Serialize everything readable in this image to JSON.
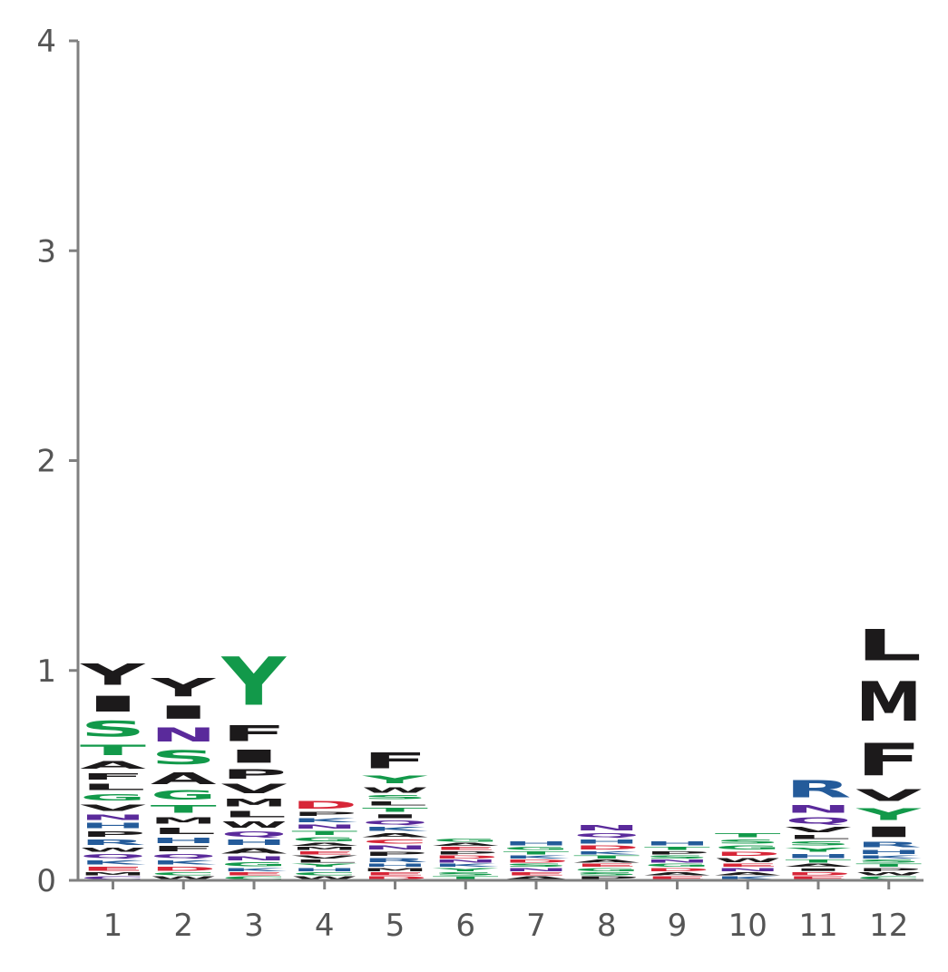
{
  "chart_data": {
    "type": "sequence-logo",
    "title": "",
    "xlabel": "",
    "ylabel": "",
    "ylim": [
      0,
      4
    ],
    "y_ticks": [
      0,
      1,
      2,
      3,
      4
    ],
    "x_ticks": [
      1,
      2,
      3,
      4,
      5,
      6,
      7,
      8,
      9,
      10,
      11,
      12
    ],
    "grid": false,
    "colors": {
      "black": "#1c1a1b",
      "green": "#12994a",
      "purple": "#5a2a9b",
      "blue": "#245b9a",
      "red": "#d72638",
      "axis": "#808080",
      "tick_text": "#555555"
    },
    "positions": [
      {
        "pos": 1,
        "letters": [
          {
            "l": "C",
            "h": 0.02,
            "c": "purple"
          },
          {
            "l": "M",
            "h": 0.02,
            "c": "black"
          },
          {
            "l": "E",
            "h": 0.03,
            "c": "red"
          },
          {
            "l": "K",
            "h": 0.03,
            "c": "blue"
          },
          {
            "l": "Q",
            "h": 0.03,
            "c": "purple"
          },
          {
            "l": "W",
            "h": 0.03,
            "c": "black"
          },
          {
            "l": "R",
            "h": 0.04,
            "c": "blue"
          },
          {
            "l": "P",
            "h": 0.04,
            "c": "black"
          },
          {
            "l": "H",
            "h": 0.04,
            "c": "blue"
          },
          {
            "l": "N",
            "h": 0.04,
            "c": "purple"
          },
          {
            "l": "V",
            "h": 0.05,
            "c": "black"
          },
          {
            "l": "G",
            "h": 0.05,
            "c": "green"
          },
          {
            "l": "L",
            "h": 0.05,
            "c": "black"
          },
          {
            "l": "F",
            "h": 0.05,
            "c": "black"
          },
          {
            "l": "A",
            "h": 0.06,
            "c": "black"
          },
          {
            "l": "T",
            "h": 0.08,
            "c": "green"
          },
          {
            "l": "S",
            "h": 0.12,
            "c": "green"
          },
          {
            "l": "I",
            "h": 0.12,
            "c": "black"
          },
          {
            "l": "Y",
            "h": 0.16,
            "c": "black"
          }
        ]
      },
      {
        "pos": 2,
        "letters": [
          {
            "l": "W",
            "h": 0.02,
            "c": "black"
          },
          {
            "l": "C",
            "h": 0.02,
            "c": "green"
          },
          {
            "l": "D",
            "h": 0.03,
            "c": "red"
          },
          {
            "l": "K",
            "h": 0.03,
            "c": "blue"
          },
          {
            "l": "Q",
            "h": 0.03,
            "c": "purple"
          },
          {
            "l": "F",
            "h": 0.04,
            "c": "black"
          },
          {
            "l": "H",
            "h": 0.04,
            "c": "blue"
          },
          {
            "l": "L",
            "h": 0.05,
            "c": "black"
          },
          {
            "l": "M",
            "h": 0.05,
            "c": "black"
          },
          {
            "l": "T",
            "h": 0.06,
            "c": "green"
          },
          {
            "l": "G",
            "h": 0.07,
            "c": "green"
          },
          {
            "l": "A",
            "h": 0.09,
            "c": "black"
          },
          {
            "l": "S",
            "h": 0.11,
            "c": "green"
          },
          {
            "l": "N",
            "h": 0.11,
            "c": "purple"
          },
          {
            "l": "I",
            "h": 0.1,
            "c": "black"
          },
          {
            "l": "Y",
            "h": 0.14,
            "c": "black"
          }
        ]
      },
      {
        "pos": 3,
        "letters": [
          {
            "l": "C",
            "h": 0.02,
            "c": "green"
          },
          {
            "l": "E",
            "h": 0.02,
            "c": "red"
          },
          {
            "l": "K",
            "h": 0.02,
            "c": "blue"
          },
          {
            "l": "G",
            "h": 0.03,
            "c": "green"
          },
          {
            "l": "N",
            "h": 0.03,
            "c": "purple"
          },
          {
            "l": "A",
            "h": 0.04,
            "c": "black"
          },
          {
            "l": "H",
            "h": 0.04,
            "c": "blue"
          },
          {
            "l": "Q",
            "h": 0.04,
            "c": "purple"
          },
          {
            "l": "W",
            "h": 0.05,
            "c": "black"
          },
          {
            "l": "L",
            "h": 0.05,
            "c": "black"
          },
          {
            "l": "M",
            "h": 0.06,
            "c": "black"
          },
          {
            "l": "V",
            "h": 0.07,
            "c": "black"
          },
          {
            "l": "P",
            "h": 0.07,
            "c": "black"
          },
          {
            "l": "I",
            "h": 0.1,
            "c": "black"
          },
          {
            "l": "F",
            "h": 0.12,
            "c": "black"
          },
          {
            "l": "Y",
            "h": 0.37,
            "c": "green"
          }
        ]
      },
      {
        "pos": 4,
        "letters": [
          {
            "l": "W",
            "h": 0.02,
            "c": "black"
          },
          {
            "l": "C",
            "h": 0.02,
            "c": "green"
          },
          {
            "l": "H",
            "h": 0.02,
            "c": "blue"
          },
          {
            "l": "Y",
            "h": 0.02,
            "c": "green"
          },
          {
            "l": "L",
            "h": 0.02,
            "c": "black"
          },
          {
            "l": "V",
            "h": 0.02,
            "c": "black"
          },
          {
            "l": "E",
            "h": 0.02,
            "c": "red"
          },
          {
            "l": "M",
            "h": 0.02,
            "c": "black"
          },
          {
            "l": "A",
            "h": 0.02,
            "c": "black"
          },
          {
            "l": "G",
            "h": 0.03,
            "c": "green"
          },
          {
            "l": "T",
            "h": 0.03,
            "c": "green"
          },
          {
            "l": "N",
            "h": 0.03,
            "c": "purple"
          },
          {
            "l": "K",
            "h": 0.03,
            "c": "blue"
          },
          {
            "l": "P",
            "h": 0.03,
            "c": "black"
          },
          {
            "l": "D",
            "h": 0.06,
            "c": "red"
          }
        ]
      },
      {
        "pos": 5,
        "letters": [
          {
            "l": "D",
            "h": 0.02,
            "c": "red"
          },
          {
            "l": "E",
            "h": 0.02,
            "c": "red"
          },
          {
            "l": "M",
            "h": 0.02,
            "c": "black"
          },
          {
            "l": "H",
            "h": 0.02,
            "c": "blue"
          },
          {
            "l": "R",
            "h": 0.03,
            "c": "blue"
          },
          {
            "l": "P",
            "h": 0.03,
            "c": "black"
          },
          {
            "l": "N",
            "h": 0.03,
            "c": "purple"
          },
          {
            "l": "C",
            "h": 0.03,
            "c": "red"
          },
          {
            "l": "A",
            "h": 0.03,
            "c": "black"
          },
          {
            "l": "K",
            "h": 0.03,
            "c": "blue"
          },
          {
            "l": "Q",
            "h": 0.03,
            "c": "purple"
          },
          {
            "l": "I",
            "h": 0.03,
            "c": "black"
          },
          {
            "l": "T",
            "h": 0.03,
            "c": "green"
          },
          {
            "l": "L",
            "h": 0.03,
            "c": "black"
          },
          {
            "l": "S",
            "h": 0.03,
            "c": "green"
          },
          {
            "l": "W",
            "h": 0.04,
            "c": "black"
          },
          {
            "l": "Y",
            "h": 0.06,
            "c": "green"
          },
          {
            "l": "F",
            "h": 0.12,
            "c": "black"
          }
        ]
      },
      {
        "pos": 6,
        "letters": [
          {
            "l": "T",
            "h": 0.02,
            "c": "green"
          },
          {
            "l": "S",
            "h": 0.02,
            "c": "green"
          },
          {
            "l": "Y",
            "h": 0.02,
            "c": "green"
          },
          {
            "l": "K",
            "h": 0.02,
            "c": "blue"
          },
          {
            "l": "N",
            "h": 0.02,
            "c": "purple"
          },
          {
            "l": "D",
            "h": 0.02,
            "c": "red"
          },
          {
            "l": "P",
            "h": 0.02,
            "c": "black"
          },
          {
            "l": "E",
            "h": 0.02,
            "c": "red"
          },
          {
            "l": "A",
            "h": 0.02,
            "c": "black"
          },
          {
            "l": "G",
            "h": 0.02,
            "c": "green"
          }
        ]
      },
      {
        "pos": 7,
        "letters": [
          {
            "l": "A",
            "h": 0.02,
            "c": "black"
          },
          {
            "l": "E",
            "h": 0.02,
            "c": "red"
          },
          {
            "l": "N",
            "h": 0.02,
            "c": "purple"
          },
          {
            "l": "S",
            "h": 0.02,
            "c": "green"
          },
          {
            "l": "D",
            "h": 0.02,
            "c": "red"
          },
          {
            "l": "K",
            "h": 0.02,
            "c": "blue"
          },
          {
            "l": "T",
            "h": 0.02,
            "c": "green"
          },
          {
            "l": "G",
            "h": 0.02,
            "c": "green"
          },
          {
            "l": "H",
            "h": 0.03,
            "c": "blue"
          }
        ]
      },
      {
        "pos": 8,
        "letters": [
          {
            "l": "P",
            "h": 0.02,
            "c": "black"
          },
          {
            "l": "S",
            "h": 0.02,
            "c": "green"
          },
          {
            "l": "G",
            "h": 0.02,
            "c": "green"
          },
          {
            "l": "E",
            "h": 0.02,
            "c": "red"
          },
          {
            "l": "A",
            "h": 0.02,
            "c": "black"
          },
          {
            "l": "T",
            "h": 0.02,
            "c": "green"
          },
          {
            "l": "K",
            "h": 0.02,
            "c": "blue"
          },
          {
            "l": "D",
            "h": 0.03,
            "c": "red"
          },
          {
            "l": "H",
            "h": 0.03,
            "c": "blue"
          },
          {
            "l": "Q",
            "h": 0.03,
            "c": "purple"
          },
          {
            "l": "N",
            "h": 0.04,
            "c": "purple"
          }
        ]
      },
      {
        "pos": 9,
        "letters": [
          {
            "l": "E",
            "h": 0.02,
            "c": "red"
          },
          {
            "l": "A",
            "h": 0.02,
            "c": "black"
          },
          {
            "l": "D",
            "h": 0.02,
            "c": "red"
          },
          {
            "l": "G",
            "h": 0.02,
            "c": "green"
          },
          {
            "l": "N",
            "h": 0.02,
            "c": "purple"
          },
          {
            "l": "S",
            "h": 0.02,
            "c": "green"
          },
          {
            "l": "P",
            "h": 0.02,
            "c": "black"
          },
          {
            "l": "T",
            "h": 0.02,
            "c": "green"
          },
          {
            "l": "H",
            "h": 0.03,
            "c": "blue"
          }
        ]
      },
      {
        "pos": 10,
        "letters": [
          {
            "l": "K",
            "h": 0.02,
            "c": "blue"
          },
          {
            "l": "A",
            "h": 0.02,
            "c": "black"
          },
          {
            "l": "N",
            "h": 0.02,
            "c": "purple"
          },
          {
            "l": "E",
            "h": 0.02,
            "c": "red"
          },
          {
            "l": "W",
            "h": 0.03,
            "c": "black"
          },
          {
            "l": "D",
            "h": 0.03,
            "c": "red"
          },
          {
            "l": "G",
            "h": 0.03,
            "c": "green"
          },
          {
            "l": "S",
            "h": 0.03,
            "c": "green"
          },
          {
            "l": "T",
            "h": 0.03,
            "c": "green"
          }
        ]
      },
      {
        "pos": 11,
        "letters": [
          {
            "l": "E",
            "h": 0.02,
            "c": "red"
          },
          {
            "l": "D",
            "h": 0.02,
            "c": "red"
          },
          {
            "l": "I",
            "h": 0.02,
            "c": "black"
          },
          {
            "l": "A",
            "h": 0.02,
            "c": "black"
          },
          {
            "l": "T",
            "h": 0.02,
            "c": "green"
          },
          {
            "l": "H",
            "h": 0.03,
            "c": "blue"
          },
          {
            "l": "Y",
            "h": 0.03,
            "c": "green"
          },
          {
            "l": "S",
            "h": 0.03,
            "c": "green"
          },
          {
            "l": "L",
            "h": 0.03,
            "c": "black"
          },
          {
            "l": "V",
            "h": 0.04,
            "c": "black"
          },
          {
            "l": "Q",
            "h": 0.05,
            "c": "purple"
          },
          {
            "l": "N",
            "h": 0.06,
            "c": "purple"
          },
          {
            "l": "R",
            "h": 0.13,
            "c": "blue"
          }
        ]
      },
      {
        "pos": 12,
        "letters": [
          {
            "l": "C",
            "h": 0.02,
            "c": "green"
          },
          {
            "l": "W",
            "h": 0.02,
            "c": "black"
          },
          {
            "l": "P",
            "h": 0.02,
            "c": "black"
          },
          {
            "l": "T",
            "h": 0.02,
            "c": "green"
          },
          {
            "l": "S",
            "h": 0.02,
            "c": "green"
          },
          {
            "l": "K",
            "h": 0.02,
            "c": "blue"
          },
          {
            "l": "H",
            "h": 0.03,
            "c": "blue"
          },
          {
            "l": "R",
            "h": 0.04,
            "c": "blue"
          },
          {
            "l": "I",
            "h": 0.08,
            "c": "black"
          },
          {
            "l": "Y",
            "h": 0.09,
            "c": "green"
          },
          {
            "l": "V",
            "h": 0.09,
            "c": "black"
          },
          {
            "l": "F",
            "h": 0.25,
            "c": "black"
          },
          {
            "l": "M",
            "h": 0.3,
            "c": "black"
          },
          {
            "l": "L",
            "h": 0.24,
            "c": "black"
          }
        ]
      }
    ]
  }
}
